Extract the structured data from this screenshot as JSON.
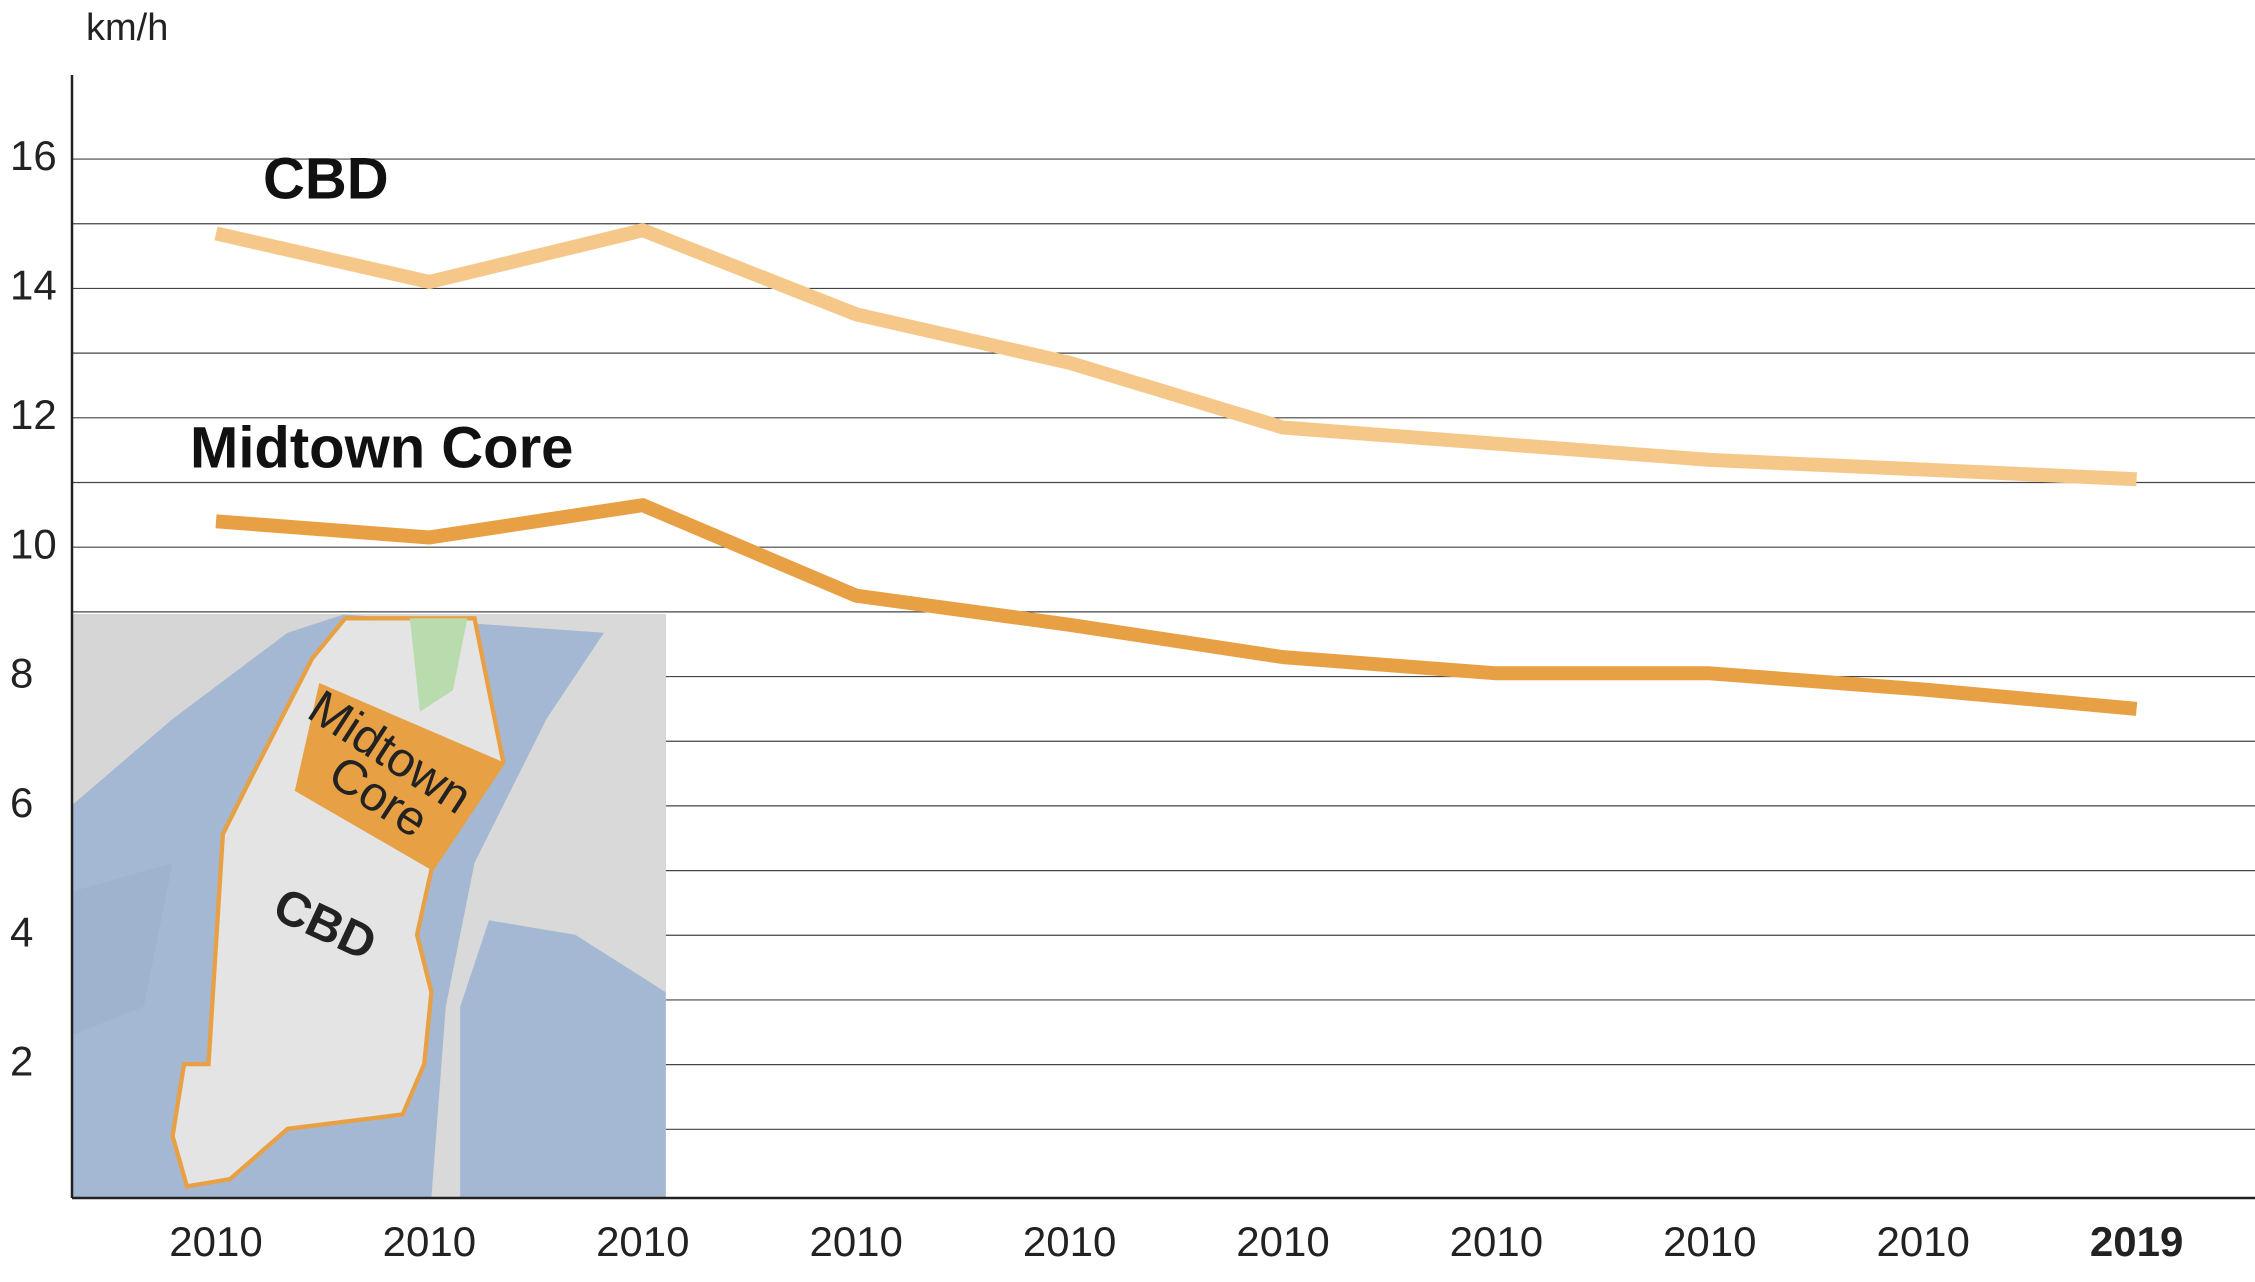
{
  "chart_data": {
    "type": "line",
    "y_unit": "km/h",
    "categories": [
      "2010",
      "2010",
      "2010",
      "2010",
      "2010",
      "2010",
      "2010",
      "2010",
      "2010",
      "2019"
    ],
    "series": [
      {
        "name": "CBD",
        "color": "#f5c88a",
        "values": [
          14.85,
          14.1,
          14.9,
          13.6,
          12.85,
          11.85,
          11.6,
          11.35,
          11.2,
          11.05
        ]
      },
      {
        "name": "Midtown Core",
        "color": "#e8a045",
        "values": [
          10.4,
          10.15,
          10.65,
          9.25,
          8.8,
          8.3,
          8.05,
          8.05,
          7.8,
          7.5
        ]
      }
    ],
    "ylim": [
      0,
      17.3
    ],
    "yticks": [
      2,
      4,
      6,
      8,
      10,
      12,
      14,
      16
    ],
    "grid_lines": [
      1,
      2,
      3,
      4,
      5,
      6,
      7,
      8,
      9,
      10,
      11,
      12,
      13,
      14,
      15,
      16
    ],
    "inset_map": {
      "labels": [
        "Midtown",
        "Core",
        "CBD"
      ]
    }
  }
}
